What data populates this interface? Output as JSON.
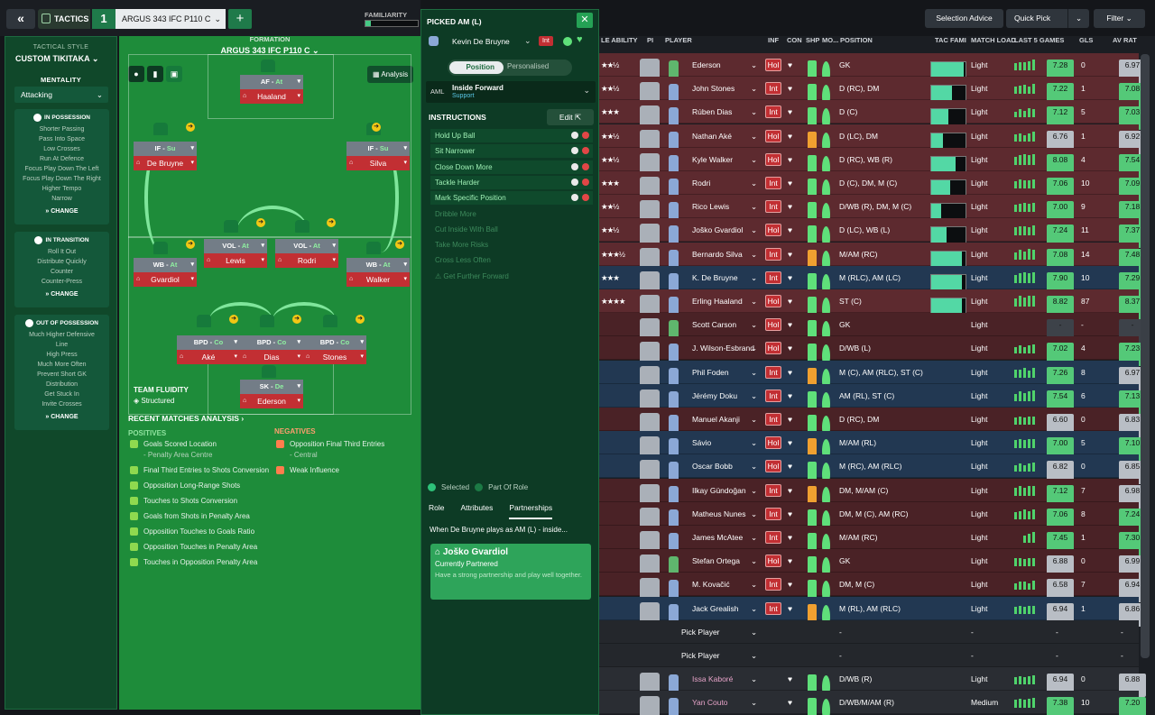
{
  "topbar": {
    "back_icon": "double-chevron-left-icon",
    "tactics_label": "TACTICS",
    "tactic_number": "1",
    "tactic_name": "ARGUS 343  IFC P110 C",
    "add_label": "+",
    "familiarity_label": "FAMILIARITY"
  },
  "left": {
    "style_label": "TACTICAL STYLE",
    "style_value": "CUSTOM TIKITAKA",
    "mentality_label": "MENTALITY",
    "mentality_value": "Attacking",
    "in_possession": {
      "title": "IN POSSESSION",
      "items": [
        "Shorter Passing",
        "Pass Into Space",
        "Low Crosses",
        "Run At Defence",
        "Focus Play Down The Left",
        "Focus Play Down The Right",
        "Higher Tempo",
        "Narrow"
      ],
      "change": "CHANGE"
    },
    "in_transition": {
      "title": "IN TRANSITION",
      "items": [
        "Roll It Out",
        "Distribute Quickly",
        "Counter",
        "Counter-Press"
      ],
      "change": "CHANGE"
    },
    "out_possession": {
      "title": "OUT OF POSSESSION",
      "items": [
        "Much Higher Defensive",
        "Line",
        "High Press",
        "Much More Often",
        "Prevent Short GK",
        "Distribution",
        "Get Stuck In",
        "Invite Crosses"
      ],
      "change": "CHANGE"
    }
  },
  "pitch": {
    "formation_label": "FORMATION",
    "formation_name": "ARGUS 343  IFC P110 C",
    "analysis_label": "Analysis",
    "fluidity_label": "TEAM FLUIDITY",
    "fluidity_value": "Structured",
    "recent_label": "RECENT MATCHES ANALYSIS",
    "players": [
      {
        "role": "AF",
        "duty": "At",
        "name": "Haaland"
      },
      {
        "role": "IF",
        "duty": "Su",
        "name": "De Bruyne"
      },
      {
        "role": "IF",
        "duty": "Su",
        "name": "Silva"
      },
      {
        "role": "VOL",
        "duty": "At",
        "name": "Lewis"
      },
      {
        "role": "VOL",
        "duty": "At",
        "name": "Rodri"
      },
      {
        "role": "WB",
        "duty": "At",
        "name": "Gvardiol"
      },
      {
        "role": "WB",
        "duty": "At",
        "name": "Walker"
      },
      {
        "role": "BPD",
        "duty": "Co",
        "name": "Aké"
      },
      {
        "role": "BPD",
        "duty": "Co",
        "name": "Dias"
      },
      {
        "role": "BPD",
        "duty": "Co",
        "name": "Stones"
      },
      {
        "role": "SK",
        "duty": "De",
        "name": "Ederson"
      }
    ],
    "positives_label": "POSITIVES",
    "positives": [
      {
        "text": "Goals Scored Location",
        "sub": "- Penalty Area Centre"
      },
      {
        "text": "Final Third Entries to Shots Conversion",
        "sub": ""
      },
      {
        "text": "Opposition Long-Range Shots",
        "sub": ""
      },
      {
        "text": "Touches to Shots Conversion",
        "sub": ""
      },
      {
        "text": "Goals from Shots in Penalty Area",
        "sub": ""
      },
      {
        "text": "Opposition Touches to Goals Ratio",
        "sub": ""
      },
      {
        "text": "Opposition Touches in Penalty Area",
        "sub": ""
      },
      {
        "text": "Touches in Opposition Penalty Area",
        "sub": ""
      }
    ],
    "negatives_label": "NEGATIVES",
    "negatives": [
      {
        "text": "Opposition Final Third Entries",
        "sub": "- Central"
      },
      {
        "text": "Weak Influence",
        "sub": ""
      }
    ]
  },
  "mid": {
    "title": "PICKED AM (L)",
    "close_icon": "close-icon",
    "player": "Kevin De Bruyne",
    "int_tag": "Int",
    "pos_toggle": "Position",
    "pers_toggle": "Personalised",
    "role_pos": "AML",
    "role_name": "Inside Forward",
    "role_duty": "Support",
    "instructions_label": "INSTRUCTIONS",
    "edit_label": "Edit",
    "active_instr": [
      "Hold Up Ball",
      "Sit Narrower",
      "Close Down More",
      "Tackle Harder",
      "Mark Specific Position"
    ],
    "inactive_instr": [
      "Dribble More",
      "Cut Inside With Ball",
      "Take More Risks",
      "Cross Less Often"
    ],
    "warning_instr": "Get Further Forward",
    "legend_selected": "Selected",
    "legend_part": "Part Of Role",
    "tabs": [
      "Role",
      "Attributes",
      "Partnerships"
    ],
    "when_text": "When De Bruyne plays as AM (L) - inside...",
    "partner_name": "Joško Gvardiol",
    "partner_status": "Currently Partnered",
    "partner_desc": "Have a strong partnership and play well together."
  },
  "right": {
    "selection_advice": "Selection Advice",
    "quick_pick": "Quick Pick",
    "filter": "Filter",
    "headers": [
      "LE ABILITY",
      "PI",
      "PLAYER",
      "INF",
      "CON",
      "SHP",
      "MO...",
      "POSITION",
      "TAC FAMI",
      "MATCH LOAD",
      "LAST 5 GAMES",
      "GLS",
      "AV RAT"
    ],
    "rows": [
      {
        "name": "Ederson",
        "stars": "★★½",
        "inf": "Hol",
        "pos": "GK",
        "fam": 0.95,
        "load": "Light",
        "last": [
          6,
          7,
          7,
          8,
          9
        ],
        "rating": "7.28",
        "gls": "0",
        "avr": "6.97",
        "bg": "#5d2a2f",
        "shirt": "#5fb66d",
        "rc": "#54c978",
        "ac": "#b9bec5"
      },
      {
        "name": "John Stones",
        "stars": "★★½",
        "inf": "Int",
        "pos": "D (RC), DM",
        "fam": 0.6,
        "load": "Light",
        "last": [
          6,
          7,
          8,
          6,
          9
        ],
        "rating": "7.22",
        "gls": "1",
        "avr": "7.08",
        "bg": "#5d2a2f",
        "shirt": "#8ba8d6",
        "rc": "#54c978",
        "ac": "#54c978"
      },
      {
        "name": "Rúben Dias",
        "stars": "★★★",
        "inf": "Int",
        "pos": "D (C)",
        "fam": 0.5,
        "load": "Light",
        "last": [
          5,
          7,
          6,
          8,
          7
        ],
        "rating": "7.12",
        "gls": "5",
        "avr": "7.03",
        "bg": "#5d2a2f",
        "shirt": "#8ba8d6",
        "rc": "#54c978",
        "ac": "#54c978"
      },
      {
        "name": "Nathan Aké",
        "stars": "★★½",
        "inf": "Hol",
        "pos": "D (LC), DM",
        "fam": 0.35,
        "load": "Light",
        "last": [
          6,
          7,
          5,
          7,
          8
        ],
        "rating": "6.76",
        "gls": "1",
        "avr": "6.92",
        "bg": "#5d2a2f",
        "shirt": "#8ba8d6",
        "rc": "#b9bec5",
        "ac": "#b9bec5"
      },
      {
        "name": "Kyle Walker",
        "stars": "★★½",
        "inf": "Hol",
        "pos": "D (RC), WB (R)",
        "fam": 0.7,
        "load": "Light",
        "last": [
          7,
          8,
          9,
          8,
          9
        ],
        "rating": "8.08",
        "gls": "4",
        "avr": "7.54",
        "bg": "#5d2a2f",
        "shirt": "#8ba8d6",
        "rc": "#54c978",
        "ac": "#54c978"
      },
      {
        "name": "Rodri",
        "stars": "★★★",
        "inf": "Int",
        "pos": "D (C), DM, M (C)",
        "fam": 0.55,
        "load": "Light",
        "last": [
          6,
          8,
          7,
          7,
          8
        ],
        "rating": "7.06",
        "gls": "10",
        "avr": "7.09",
        "bg": "#5d2a2f",
        "shirt": "#8ba8d6",
        "rc": "#54c978",
        "ac": "#54c978"
      },
      {
        "name": "Rico Lewis",
        "stars": "★★½",
        "inf": "Int",
        "pos": "D/WB (R), DM, M (C)",
        "fam": 0.3,
        "load": "Light",
        "last": [
          6,
          7,
          8,
          7,
          8
        ],
        "rating": "7.00",
        "gls": "9",
        "avr": "7.18",
        "bg": "#5d2a2f",
        "shirt": "#8ba8d6",
        "rc": "#54c978",
        "ac": "#54c978"
      },
      {
        "name": "Joško Gvardiol",
        "stars": "★★½",
        "inf": "Hol",
        "pos": "D (LC), WB (L)",
        "fam": 0.45,
        "load": "Light",
        "last": [
          7,
          8,
          8,
          7,
          9
        ],
        "rating": "7.24",
        "gls": "11",
        "avr": "7.37",
        "bg": "#5d2a2f",
        "shirt": "#8ba8d6",
        "rc": "#54c978",
        "ac": "#54c978"
      },
      {
        "name": "Bernardo Silva",
        "stars": "★★★½",
        "inf": "Int",
        "pos": "M/AM (RC)",
        "fam": 0.9,
        "load": "Light",
        "last": [
          6,
          8,
          7,
          9,
          8
        ],
        "rating": "7.08",
        "gls": "14",
        "avr": "7.48",
        "bg": "#5d2a2f",
        "shirt": "#8ba8d6",
        "rc": "#54c978",
        "ac": "#54c978"
      },
      {
        "name": "K. De Bruyne",
        "stars": "★★★",
        "inf": "Int",
        "pos": "M (RLC), AM (LC)",
        "fam": 0.9,
        "load": "Light",
        "last": [
          7,
          8,
          9,
          8,
          9
        ],
        "rating": "7.90",
        "gls": "10",
        "avr": "7.29",
        "bg": "#223852",
        "shirt": "#8ba8d6",
        "rc": "#54c978",
        "ac": "#54c978"
      },
      {
        "name": "Erling Haaland",
        "stars": "★★★★",
        "inf": "Hol",
        "pos": "ST (C)",
        "fam": 0.9,
        "load": "Light",
        "last": [
          7,
          9,
          8,
          9,
          9
        ],
        "rating": "8.82",
        "gls": "87",
        "avr": "8.37",
        "bg": "#5d2a2f",
        "shirt": "#8ba8d6",
        "rc": "#54c978",
        "ac": "#54c978"
      },
      {
        "name": "Scott Carson",
        "stars": "",
        "inf": "Hol",
        "pos": "GK",
        "fam": 0,
        "load": "Light",
        "last": [],
        "rating": "-",
        "gls": "-",
        "avr": "-",
        "bg": "#4a2226",
        "shirt": "#5fb66d",
        "rc": "#3d4249",
        "ac": "#3d4249"
      },
      {
        "name": "J. Wilson-Esbrand",
        "stars": "",
        "inf": "Hol",
        "pos": "D/WB (L)",
        "fam": 0,
        "load": "Light",
        "last": [
          6,
          7,
          6,
          7,
          8
        ],
        "rating": "7.02",
        "gls": "4",
        "avr": "7.23",
        "bg": "#4a2226",
        "shirt": "#8ba8d6",
        "rc": "#54c978",
        "ac": "#54c978"
      },
      {
        "name": "Phil Foden",
        "stars": "",
        "inf": "Int",
        "pos": "M (C), AM (RLC), ST (C)",
        "fam": 0,
        "load": "Light",
        "last": [
          7,
          7,
          8,
          6,
          8
        ],
        "rating": "7.26",
        "gls": "8",
        "avr": "6.97",
        "bg": "#223852",
        "shirt": "#8ba8d6",
        "rc": "#54c978",
        "ac": "#b9bec5"
      },
      {
        "name": "Jérémy Doku",
        "stars": "",
        "inf": "Int",
        "pos": "AM (RL), ST (C)",
        "fam": 0,
        "load": "Light",
        "last": [
          6,
          8,
          7,
          8,
          9
        ],
        "rating": "7.54",
        "gls": "6",
        "avr": "7.13",
        "bg": "#223852",
        "shirt": "#8ba8d6",
        "rc": "#54c978",
        "ac": "#54c978"
      },
      {
        "name": "Manuel Akanji",
        "stars": "",
        "inf": "Int",
        "pos": "D (RC), DM",
        "fam": 0,
        "load": "Light",
        "last": [
          6,
          7,
          6,
          7,
          7
        ],
        "rating": "6.60",
        "gls": "0",
        "avr": "6.83",
        "bg": "#4a2226",
        "shirt": "#8ba8d6",
        "rc": "#b9bec5",
        "ac": "#b9bec5"
      },
      {
        "name": "Sávio",
        "stars": "",
        "inf": "Hol",
        "pos": "M/AM (RL)",
        "fam": 0,
        "load": "Light",
        "last": [
          7,
          8,
          7,
          8,
          8
        ],
        "rating": "7.00",
        "gls": "5",
        "avr": "7.10",
        "bg": "#223852",
        "shirt": "#8ba8d6",
        "rc": "#54c978",
        "ac": "#54c978"
      },
      {
        "name": "Oscar Bobb",
        "stars": "",
        "inf": "Hol",
        "pos": "M (RC), AM (RLC)",
        "fam": 0,
        "load": "Light",
        "last": [
          6,
          7,
          6,
          7,
          8
        ],
        "rating": "6.82",
        "gls": "0",
        "avr": "6.85",
        "bg": "#223852",
        "shirt": "#8ba8d6",
        "rc": "#b9bec5",
        "ac": "#b9bec5"
      },
      {
        "name": "Ilkay Gündoğan",
        "stars": "",
        "inf": "Int",
        "pos": "DM, M/AM (C)",
        "fam": 0,
        "load": "Light",
        "last": [
          7,
          8,
          7,
          8,
          8
        ],
        "rating": "7.12",
        "gls": "7",
        "avr": "6.98",
        "bg": "#4a2226",
        "shirt": "#8ba8d6",
        "rc": "#54c978",
        "ac": "#b9bec5"
      },
      {
        "name": "Matheus Nunes",
        "stars": "",
        "inf": "Int",
        "pos": "DM, M (C), AM (RC)",
        "fam": 0,
        "load": "Light",
        "last": [
          6,
          7,
          8,
          7,
          8
        ],
        "rating": "7.06",
        "gls": "8",
        "avr": "7.24",
        "bg": "#4a2226",
        "shirt": "#8ba8d6",
        "rc": "#54c978",
        "ac": "#54c978"
      },
      {
        "name": "James McAtee",
        "stars": "",
        "inf": "Int",
        "pos": "M/AM (RC)",
        "fam": 0,
        "load": "Light",
        "last": [
          0,
          0,
          6,
          8,
          9
        ],
        "rating": "7.45",
        "gls": "1",
        "avr": "7.30",
        "bg": "#4a2226",
        "shirt": "#8ba8d6",
        "rc": "#54c978",
        "ac": "#54c978"
      },
      {
        "name": "Stefan Ortega",
        "stars": "",
        "inf": "Hol",
        "pos": "GK",
        "fam": 0,
        "load": "Light",
        "last": [
          7,
          7,
          6,
          7,
          7
        ],
        "rating": "6.88",
        "gls": "0",
        "avr": "6.99",
        "bg": "#4a2226",
        "shirt": "#5fb66d",
        "rc": "#b9bec5",
        "ac": "#b9bec5"
      },
      {
        "name": "M. Kovačić",
        "stars": "",
        "inf": "Int",
        "pos": "DM, M (C)",
        "fam": 0,
        "load": "Light",
        "last": [
          6,
          7,
          7,
          6,
          8
        ],
        "rating": "6.58",
        "gls": "7",
        "avr": "6.94",
        "bg": "#4a2226",
        "shirt": "#8ba8d6",
        "rc": "#b9bec5",
        "ac": "#b9bec5"
      },
      {
        "name": "Jack Grealish",
        "stars": "",
        "inf": "Int",
        "pos": "M (RL), AM (RLC)",
        "fam": 0,
        "load": "Light",
        "last": [
          6,
          7,
          6,
          7,
          7
        ],
        "rating": "6.94",
        "gls": "1",
        "avr": "6.86",
        "bg": "#223852",
        "shirt": "#8ba8d6",
        "rc": "#b9bec5",
        "ac": "#b9bec5"
      },
      {
        "name": "Pick Player",
        "stars": "",
        "inf": "",
        "pos": "-",
        "fam": 0,
        "load": "-",
        "last": [],
        "rating": "-",
        "gls": "",
        "avr": "-",
        "bg": "#24272c",
        "shirt": "",
        "rc": "#3d4249",
        "ac": "#3d4249",
        "pick": true
      },
      {
        "name": "Pick Player",
        "stars": "",
        "inf": "",
        "pos": "-",
        "fam": 0,
        "load": "-",
        "last": [],
        "rating": "-",
        "gls": "",
        "avr": "-",
        "bg": "#24272c",
        "shirt": "",
        "rc": "#3d4249",
        "ac": "#3d4249",
        "pick": true
      },
      {
        "name": "Issa Kaboré",
        "stars": "",
        "inf": "",
        "pos": "D/WB (R)",
        "fam": 0,
        "load": "Light",
        "last": [
          6,
          7,
          6,
          7,
          8
        ],
        "rating": "6.94",
        "gls": "0",
        "avr": "6.88",
        "bg": "#2a2d33",
        "shirt": "#8ba8d6",
        "rc": "#b9bec5",
        "ac": "#b9bec5",
        "loan": true
      },
      {
        "name": "Yan Couto",
        "stars": "",
        "inf": "",
        "pos": "D/WB/M/AM (R)",
        "fam": 0,
        "load": "Medium",
        "last": [
          7,
          8,
          7,
          8,
          9
        ],
        "rating": "7.38",
        "gls": "10",
        "avr": "7.20",
        "bg": "#2a2d33",
        "shirt": "#8ba8d6",
        "rc": "#54c978",
        "ac": "#54c978",
        "loan": true
      }
    ]
  }
}
